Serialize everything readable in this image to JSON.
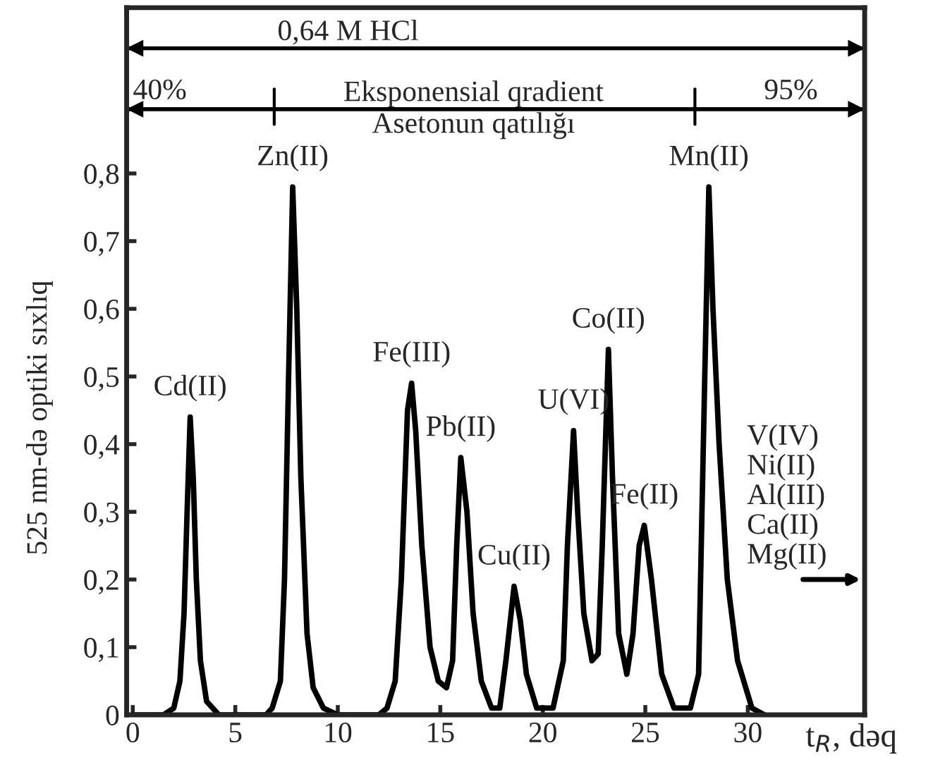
{
  "chart_data": {
    "type": "line",
    "xlabel": "t$_{R}$, dəq",
    "ylabel": "525 nm-də optiki sıxlıq",
    "xlim": [
      -0.3,
      35.7
    ],
    "ylim": [
      0,
      1.045
    ],
    "ref_lines": [
      {
        "axis": "y",
        "value": 0.985,
        "label": "0,64 M HCl"
      },
      {
        "axis": "y",
        "value": 0.895,
        "label": "Eksponensial qradient"
      }
    ],
    "xticks": [
      0,
      5,
      10,
      15,
      20,
      25,
      30
    ],
    "yticks": [
      0,
      {
        "value": 0.1,
        "label": "0,1"
      },
      {
        "value": 0.2,
        "label": "0,2"
      },
      {
        "value": 0.3,
        "label": "0,3"
      },
      {
        "value": 0.4,
        "label": "0,4"
      },
      {
        "value": 0.5,
        "label": "0,5"
      },
      {
        "value": 0.6,
        "label": "0,6"
      },
      {
        "value": 0.7,
        "label": "0,7"
      },
      {
        "value": 0.8,
        "label": "0,8"
      }
    ],
    "series": [
      {
        "color": "#000000",
        "x": [
          0,
          1.5,
          2.0,
          2.3,
          2.5,
          2.65,
          2.8,
          2.95,
          3.1,
          3.3,
          3.6,
          4.2,
          6.5,
          6.8,
          7.2,
          7.4,
          7.6,
          7.8,
          8.0,
          8.2,
          8.5,
          8.8,
          9.3,
          10,
          12,
          12.4,
          12.8,
          13.1,
          13.4,
          13.6,
          13.8,
          14.1,
          14.5,
          14.9,
          15.3,
          15.6,
          15.8,
          16.0,
          16.3,
          16.6,
          17.0,
          17.5,
          17.9,
          18.2,
          18.6,
          18.9,
          19.2,
          19.7,
          20.5,
          21.0,
          21.2,
          21.5,
          21.7,
          22.0,
          22.4,
          22.7,
          22.9,
          23.2,
          23.4,
          23.7,
          24.1,
          24.4,
          24.7,
          24.95,
          25.3,
          25.8,
          26.4,
          27.2,
          27.6,
          27.9,
          28.1,
          28.3,
          28.6,
          29.0,
          29.5,
          30.2,
          30.8
        ],
        "values": [
          0,
          0,
          0.01,
          0.05,
          0.15,
          0.3,
          0.44,
          0.35,
          0.2,
          0.08,
          0.02,
          0,
          0,
          0.01,
          0.05,
          0.2,
          0.5,
          0.78,
          0.6,
          0.35,
          0.12,
          0.04,
          0.01,
          0,
          0,
          0.01,
          0.05,
          0.2,
          0.45,
          0.49,
          0.42,
          0.25,
          0.1,
          0.05,
          0.04,
          0.08,
          0.25,
          0.38,
          0.3,
          0.15,
          0.05,
          0.01,
          0.01,
          0.08,
          0.19,
          0.14,
          0.06,
          0.01,
          0.01,
          0.08,
          0.25,
          0.42,
          0.3,
          0.15,
          0.08,
          0.09,
          0.25,
          0.54,
          0.35,
          0.12,
          0.06,
          0.12,
          0.25,
          0.28,
          0.2,
          0.06,
          0.01,
          0.01,
          0.06,
          0.5,
          0.78,
          0.6,
          0.4,
          0.2,
          0.08,
          0.01,
          0
        ]
      }
    ],
    "annotations": [
      "40%",
      "95%",
      "Asetonun qatılığı",
      {
        "text": "Cd(II)",
        "x": 2.8,
        "y": 0.44
      },
      {
        "text": "Zn(II)",
        "x": 7.8,
        "y": 0.78
      },
      {
        "text": "Fe(III)",
        "x": 13.6,
        "y": 0.49
      },
      {
        "text": "Pb(II)",
        "x": 16.0,
        "y": 0.38
      },
      {
        "text": "Cu(II)",
        "x": 18.6,
        "y": 0.19
      },
      {
        "text": "U(VI)",
        "x": 21.5,
        "y": 0.42
      },
      {
        "text": "Co(II)",
        "x": 23.2,
        "y": 0.54
      },
      {
        "text": "Fe(II)",
        "x": 24.95,
        "y": 0.28
      },
      {
        "text": "Mn(II)",
        "x": 28.1,
        "y": 0.78
      },
      {
        "text": "V(IV)\nNi(II)\nAl(III)\nCa(II)\nMg(II)",
        "x": 29.0,
        "y": 0.2
      }
    ]
  }
}
